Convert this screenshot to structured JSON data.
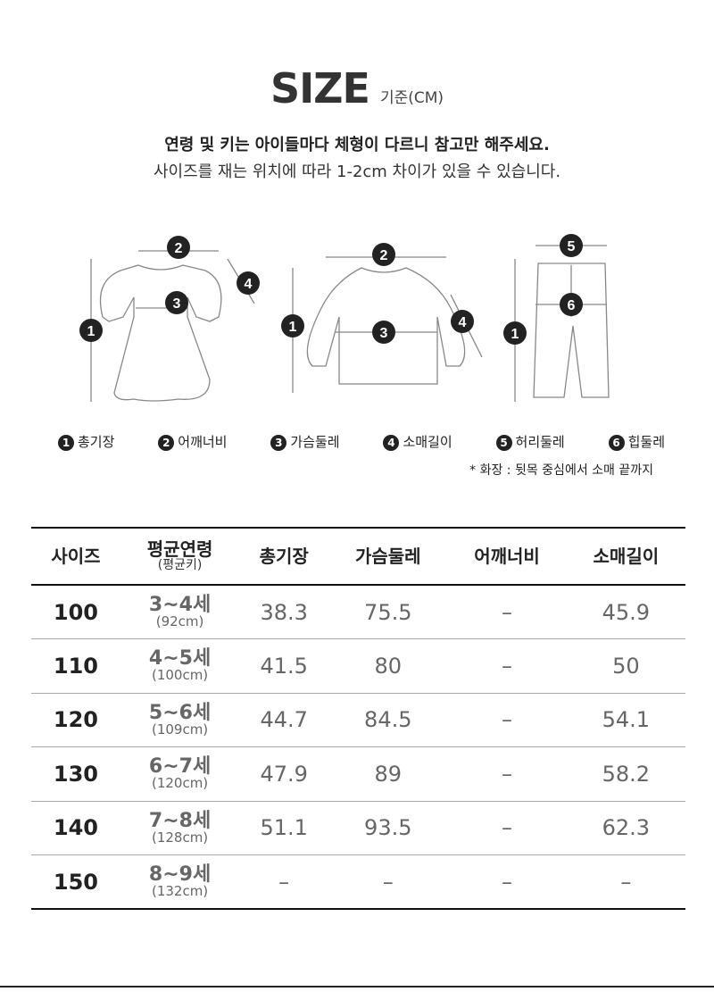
{
  "header": {
    "title": "SIZE",
    "unit": "기준(CM)",
    "line1": "연령 및 키는 아이들마다 체형이 다르니 참고만 해주세요.",
    "line2": "사이즈를 재는 위치에 따라 1-2cm 차이가 있을 수 있습니다."
  },
  "legend": [
    {
      "num": "1",
      "label": "총기장"
    },
    {
      "num": "2",
      "label": "어깨너비"
    },
    {
      "num": "3",
      "label": "가슴둘레"
    },
    {
      "num": "4",
      "label": "소매길이"
    },
    {
      "num": "5",
      "label": "허리둘레"
    },
    {
      "num": "6",
      "label": "힙둘레"
    }
  ],
  "note": "* 화장 : 뒷목 중심에서 소매 끝까지",
  "table": {
    "headers": [
      {
        "main": "사이즈"
      },
      {
        "main": "평균연령",
        "sub": "(평균키)"
      },
      {
        "main": "총기장"
      },
      {
        "main": "가슴둘레"
      },
      {
        "main": "어깨너비"
      },
      {
        "main": "소매길이"
      }
    ],
    "rows": [
      {
        "size": "100",
        "age": "3~4세",
        "height": "(92cm)",
        "length": "38.3",
        "chest": "75.5",
        "shoulder": "–",
        "sleeve": "45.9"
      },
      {
        "size": "110",
        "age": "4~5세",
        "height": "(100cm)",
        "length": "41.5",
        "chest": "80",
        "shoulder": "–",
        "sleeve": "50"
      },
      {
        "size": "120",
        "age": "5~6세",
        "height": "(109cm)",
        "length": "44.7",
        "chest": "84.5",
        "shoulder": "–",
        "sleeve": "54.1"
      },
      {
        "size": "130",
        "age": "6~7세",
        "height": "(120cm)",
        "length": "47.9",
        "chest": "89",
        "shoulder": "–",
        "sleeve": "58.2"
      },
      {
        "size": "140",
        "age": "7~8세",
        "height": "(128cm)",
        "length": "51.1",
        "chest": "93.5",
        "shoulder": "–",
        "sleeve": "62.3"
      },
      {
        "size": "150",
        "age": "8~9세",
        "height": "(132cm)",
        "length": "–",
        "chest": "–",
        "shoulder": "–",
        "sleeve": "–"
      }
    ]
  }
}
